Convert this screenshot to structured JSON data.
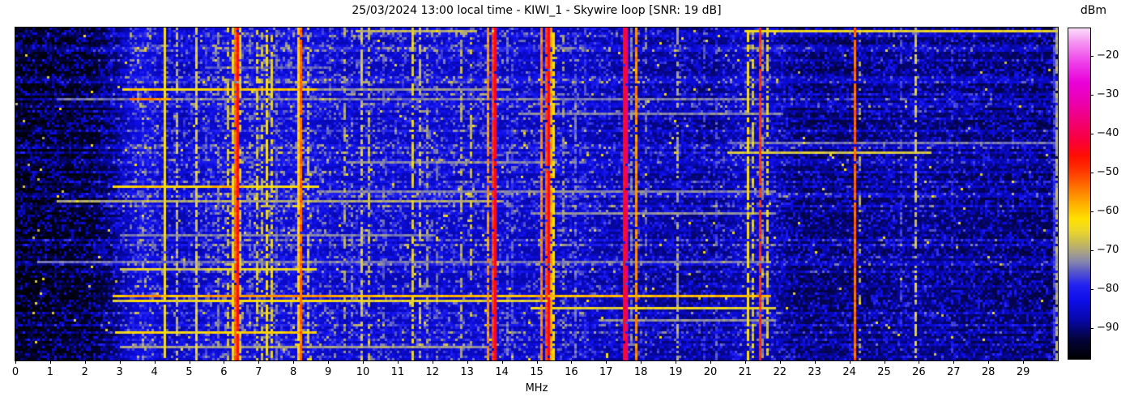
{
  "title": "25/03/2024 13:00 local time - KIWI_1 - Skywire loop [SNR: 19 dB]",
  "x_axis": {
    "label": "MHz",
    "ticks": [
      0,
      1,
      2,
      3,
      4,
      5,
      6,
      7,
      8,
      9,
      10,
      11,
      12,
      13,
      14,
      15,
      16,
      17,
      18,
      19,
      20,
      21,
      22,
      23,
      24,
      25,
      26,
      27,
      28,
      29
    ]
  },
  "colorbar": {
    "label": "dBm",
    "ticks": [
      {
        "v": -20,
        "label": "−20"
      },
      {
        "v": -30,
        "label": "−30"
      },
      {
        "v": -40,
        "label": "−40"
      },
      {
        "v": -50,
        "label": "−50"
      },
      {
        "v": -60,
        "label": "−60"
      },
      {
        "v": -70,
        "label": "−70"
      },
      {
        "v": -80,
        "label": "−80"
      },
      {
        "v": -90,
        "label": "−90"
      }
    ],
    "vmin": -98,
    "vmax": -13
  },
  "chart_data": {
    "type": "heatmap",
    "title": "25/03/2024 13:00 local time - KIWI_1 - Skywire loop [SNR: 19 dB]",
    "xlabel": "MHz",
    "x_range": [
      0,
      30
    ],
    "y_axis": "time (rows, unlabeled waterfall)",
    "value_unit": "dBm",
    "value_range": [
      -98,
      -13
    ],
    "colormap_stops": [
      [
        -98,
        "#000000"
      ],
      [
        -93,
        "#03033a"
      ],
      [
        -88,
        "#0707a8"
      ],
      [
        -83,
        "#0d0de8"
      ],
      [
        -79,
        "#2222f2"
      ],
      [
        -76,
        "#5050cf"
      ],
      [
        -73,
        "#8585ad"
      ],
      [
        -70.5,
        "#a8a285"
      ],
      [
        -68,
        "#c9bc55"
      ],
      [
        -65,
        "#ecd72a"
      ],
      [
        -62,
        "#ffe000"
      ],
      [
        -58,
        "#ffae00"
      ],
      [
        -54,
        "#ff7400"
      ],
      [
        -50,
        "#ff3a00"
      ],
      [
        -46,
        "#ff0f00"
      ],
      [
        -42,
        "#fa0038"
      ],
      [
        -37,
        "#f20074"
      ],
      [
        -32,
        "#eb00ae"
      ],
      [
        -27,
        "#e900d8"
      ],
      [
        -22,
        "#ee3ce9"
      ],
      [
        -17,
        "#f48df1"
      ],
      [
        -13,
        "#fbdcfa"
      ]
    ],
    "noise_floor_profile": [
      [
        0,
        -96.5
      ],
      [
        2.2,
        -95
      ],
      [
        2.9,
        -90
      ],
      [
        3.35,
        -85
      ],
      [
        3.65,
        -82.5
      ],
      [
        4.05,
        -85
      ],
      [
        4.5,
        -87
      ],
      [
        5.3,
        -86
      ],
      [
        5.7,
        -84.5
      ],
      [
        8.4,
        -84
      ],
      [
        9.3,
        -86
      ],
      [
        12.5,
        -85.5
      ],
      [
        16.3,
        -86.5
      ],
      [
        17.3,
        -88
      ],
      [
        20.0,
        -89.5
      ],
      [
        21.15,
        -86.5
      ],
      [
        21.75,
        -87.5
      ],
      [
        22.4,
        -91
      ],
      [
        24.1,
        -91
      ],
      [
        25.9,
        -89.5
      ],
      [
        27.0,
        -90.5
      ],
      [
        30,
        -91.5
      ]
    ],
    "signals": [
      {
        "f": 4.25,
        "level": -64,
        "duty": 0.95,
        "w": 1
      },
      {
        "f": 4.62,
        "level": -69,
        "duty": 0.65,
        "w": 1
      },
      {
        "f": 5.15,
        "level": -66,
        "duty": 0.85,
        "w": 1
      },
      {
        "f": 5.45,
        "level": -76,
        "duty": 0.4,
        "w": 1
      },
      {
        "f": 5.83,
        "level": -73,
        "duty": 0.45,
        "w": 1
      },
      {
        "f": 6.07,
        "level": -68,
        "duty": 0.55,
        "w": 1
      },
      {
        "f": 6.19,
        "level": -65,
        "duty": 0.75,
        "w": 1
      },
      {
        "f": 6.31,
        "level": -53,
        "duty": 0.97,
        "w": 2
      },
      {
        "f": 6.44,
        "level": -66,
        "duty": 0.6,
        "w": 1
      },
      {
        "f": 6.68,
        "level": -74,
        "duty": 0.4,
        "w": 1
      },
      {
        "f": 6.9,
        "level": -67,
        "duty": 0.5,
        "w": 1
      },
      {
        "f": 7.09,
        "level": -68,
        "duty": 0.5,
        "w": 1
      },
      {
        "f": 7.22,
        "level": -64,
        "duty": 0.8,
        "w": 1
      },
      {
        "f": 7.36,
        "level": -66,
        "duty": 0.65,
        "w": 1
      },
      {
        "f": 7.49,
        "level": -75,
        "duty": 0.5,
        "w": 1
      },
      {
        "f": 8.09,
        "level": -60,
        "duty": 0.97,
        "w": 2
      },
      {
        "f": 8.36,
        "level": -68,
        "duty": 0.55,
        "w": 1
      },
      {
        "f": 9.05,
        "level": -76,
        "duty": 0.35,
        "w": 1
      },
      {
        "f": 9.42,
        "level": -70,
        "duty": 0.45,
        "w": 1
      },
      {
        "f": 9.68,
        "level": -73,
        "duty": 0.4,
        "w": 1
      },
      {
        "f": 9.91,
        "level": -67,
        "duty": 0.6,
        "w": 1
      },
      {
        "f": 10.14,
        "level": -69,
        "duty": 0.5,
        "w": 1
      },
      {
        "f": 10.55,
        "level": -75,
        "duty": 0.35,
        "w": 1
      },
      {
        "f": 11.4,
        "level": -66,
        "duty": 0.7,
        "w": 1
      },
      {
        "f": 11.62,
        "level": -68,
        "duty": 0.5,
        "w": 1
      },
      {
        "f": 11.84,
        "level": -71,
        "duty": 0.45,
        "w": 1
      },
      {
        "f": 12.12,
        "level": -75,
        "duty": 0.4,
        "w": 1
      },
      {
        "f": 12.8,
        "level": -70,
        "duty": 0.45,
        "w": 1
      },
      {
        "f": 13.06,
        "level": -68,
        "duty": 0.45,
        "w": 1
      },
      {
        "f": 13.58,
        "level": -56,
        "duty": 0.9,
        "w": 1
      },
      {
        "f": 13.71,
        "level": -50,
        "duty": 0.95,
        "w": 2
      },
      {
        "f": 13.81,
        "level": -63,
        "duty": 0.7,
        "w": 1
      },
      {
        "f": 14.1,
        "level": -74,
        "duty": 0.5,
        "w": 1
      },
      {
        "f": 14.3,
        "level": -76,
        "duty": 0.4,
        "w": 1
      },
      {
        "f": 15.12,
        "level": -55,
        "duty": 0.9,
        "w": 1
      },
      {
        "f": 15.23,
        "level": -51,
        "duty": 0.92,
        "w": 2
      },
      {
        "f": 15.36,
        "level": -58,
        "duty": 0.85,
        "w": 1
      },
      {
        "f": 15.47,
        "level": -63,
        "duty": 0.7,
        "w": 1
      },
      {
        "f": 15.74,
        "level": -72,
        "duty": 0.45,
        "w": 1
      },
      {
        "f": 16.06,
        "level": -74,
        "duty": 0.5,
        "w": 1
      },
      {
        "f": 16.35,
        "level": -77,
        "duty": 0.35,
        "w": 1
      },
      {
        "f": 17.5,
        "level": -45,
        "duty": 0.97,
        "w": 2
      },
      {
        "f": 17.68,
        "level": -73,
        "duty": 0.5,
        "w": 1
      },
      {
        "f": 17.8,
        "level": -56,
        "duty": 0.9,
        "w": 1
      },
      {
        "f": 18.1,
        "level": -74,
        "duty": 0.35,
        "w": 1
      },
      {
        "f": 19.03,
        "level": -70,
        "duty": 0.55,
        "w": 1
      },
      {
        "f": 19.8,
        "level": -77,
        "duty": 0.3,
        "w": 1
      },
      {
        "f": 20.12,
        "level": -76,
        "duty": 0.35,
        "w": 1
      },
      {
        "f": 21.07,
        "level": -63,
        "duty": 0.8,
        "w": 1
      },
      {
        "f": 21.2,
        "level": -67,
        "duty": 0.55,
        "w": 1
      },
      {
        "f": 21.37,
        "level": -49,
        "duty": 0.95,
        "w": 1
      },
      {
        "f": 21.5,
        "level": -72,
        "duty": 0.5,
        "w": 1
      },
      {
        "f": 21.63,
        "level": -66,
        "duty": 0.6,
        "w": 1
      },
      {
        "f": 24.13,
        "level": -53,
        "duty": 0.96,
        "w": 1
      },
      {
        "f": 24.27,
        "level": -71,
        "duty": 0.35,
        "w": 1
      },
      {
        "f": 25.45,
        "level": -76,
        "duty": 0.4,
        "w": 1
      },
      {
        "f": 25.87,
        "level": -67,
        "duty": 0.6,
        "w": 1
      },
      {
        "f": 26.95,
        "level": -79,
        "duty": 0.35,
        "w": 1
      },
      {
        "f": 29.88,
        "level": -77,
        "duty": 0.85,
        "w": 2
      }
    ],
    "time_streaks": [
      {
        "y": 0.008,
        "f0": 9.8,
        "f1": 13.2,
        "level": -69
      },
      {
        "y": 0.01,
        "f0": 21.0,
        "f1": 30.0,
        "level": -65
      },
      {
        "y": 0.115,
        "f0": 5.5,
        "f1": 9.0,
        "level": -75
      },
      {
        "y": 0.185,
        "f0": 3.1,
        "f1": 8.6,
        "level": -63
      },
      {
        "y": 0.185,
        "f0": 8.6,
        "f1": 14.2,
        "level": -72
      },
      {
        "y": 0.21,
        "f0": 3.3,
        "f1": 4.4,
        "level": -58
      },
      {
        "y": 0.215,
        "f0": 1.2,
        "f1": 21.5,
        "level": -74
      },
      {
        "y": 0.255,
        "f0": 14.5,
        "f1": 22.0,
        "level": -73
      },
      {
        "y": 0.345,
        "f0": 20.5,
        "f1": 30.0,
        "level": -74
      },
      {
        "y": 0.375,
        "f0": 20.5,
        "f1": 26.3,
        "level": -67
      },
      {
        "y": 0.4,
        "f0": 9.5,
        "f1": 15.5,
        "level": -73
      },
      {
        "y": 0.475,
        "f0": 2.8,
        "f1": 6.5,
        "level": -62
      },
      {
        "y": 0.475,
        "f0": 6.5,
        "f1": 8.7,
        "level": -66
      },
      {
        "y": 0.49,
        "f0": 8.7,
        "f1": 21.8,
        "level": -73
      },
      {
        "y": 0.515,
        "f0": 1.2,
        "f1": 14.0,
        "level": -70
      },
      {
        "y": 0.555,
        "f0": 14.8,
        "f1": 21.8,
        "level": -72
      },
      {
        "y": 0.62,
        "f0": 3.0,
        "f1": 12.0,
        "level": -73
      },
      {
        "y": 0.7,
        "f0": 0.6,
        "f1": 21.7,
        "level": -74
      },
      {
        "y": 0.725,
        "f0": 3.0,
        "f1": 8.6,
        "level": -68
      },
      {
        "y": 0.8,
        "f0": 2.8,
        "f1": 21.7,
        "level": -59
      },
      {
        "y": 0.815,
        "f0": 2.8,
        "f1": 15.3,
        "level": -66
      },
      {
        "y": 0.838,
        "f0": 14.8,
        "f1": 21.8,
        "level": -65
      },
      {
        "y": 0.878,
        "f0": 16.8,
        "f1": 21.8,
        "level": -72
      },
      {
        "y": 0.915,
        "f0": 2.9,
        "f1": 8.6,
        "level": -64
      },
      {
        "y": 0.955,
        "f0": 3.0,
        "f1": 13.5,
        "level": -71
      }
    ],
    "layout": {
      "grid": false,
      "legend": "colorbar right",
      "blue_row_fraction": 0.32
    }
  }
}
